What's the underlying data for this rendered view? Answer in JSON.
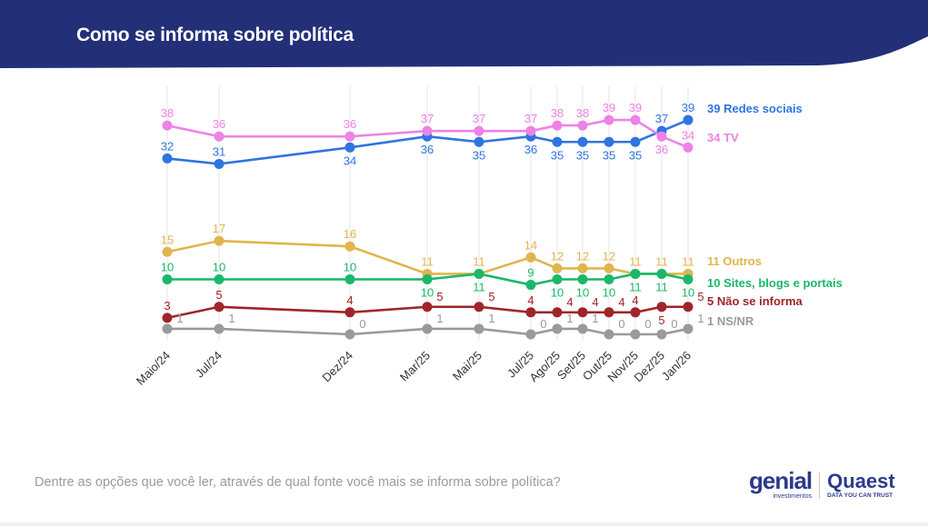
{
  "header": {
    "title": "Como se informa sobre política",
    "color": "#233078"
  },
  "question": "Dentre as opções que você ler, através de qual fonte você mais se informa sobre política?",
  "logos": {
    "genial": "genial",
    "genial_sub": "investimentos",
    "quaest": "Quaest",
    "quaest_sub": "DATA YOU CAN TRUST"
  },
  "chart_data": {
    "type": "line",
    "categories": [
      "Maio/24",
      "Jul/24",
      "Dez/24",
      "Mar/25",
      "Mai/25",
      "Jul/25",
      "Ago/25",
      "Set/25",
      "Out/25",
      "Nov/25",
      "Dez/25",
      "Jan/26"
    ],
    "ylim": [
      0,
      40
    ],
    "grid": "vertical",
    "legend": "right end labels",
    "series": [
      {
        "name": "Redes sociais",
        "legend": "39 Redes sociais",
        "color": "#2f74e0",
        "values": [
          32,
          31,
          34,
          36,
          35,
          36,
          35,
          35,
          35,
          35,
          37,
          39
        ]
      },
      {
        "name": "TV",
        "legend": "34 TV",
        "color": "#ee82e6",
        "values": [
          38,
          36,
          36,
          37,
          37,
          37,
          38,
          38,
          39,
          39,
          36,
          34
        ]
      },
      {
        "name": "Outros",
        "legend": "11 Outros",
        "color": "#e0b54c",
        "values": [
          15,
          17,
          16,
          11,
          11,
          14,
          12,
          12,
          12,
          11,
          11,
          11
        ]
      },
      {
        "name": "Sites, blogs e portais",
        "legend": "10 Sites, blogs e portais",
        "color": "#19b86a",
        "values": [
          10,
          10,
          10,
          10,
          11,
          9,
          10,
          10,
          10,
          11,
          11,
          10
        ]
      },
      {
        "name": "Não se informa",
        "legend": "5 Não se informa",
        "color": "#a0252a",
        "values": [
          3,
          5,
          4,
          5,
          5,
          4,
          4,
          4,
          4,
          4,
          5,
          5
        ]
      },
      {
        "name": "NS/NR",
        "legend": "1 NS/NR",
        "color": "#9a9a9a",
        "values": [
          1,
          1,
          0,
          1,
          1,
          0,
          1,
          1,
          0,
          0,
          0,
          1
        ]
      }
    ]
  }
}
